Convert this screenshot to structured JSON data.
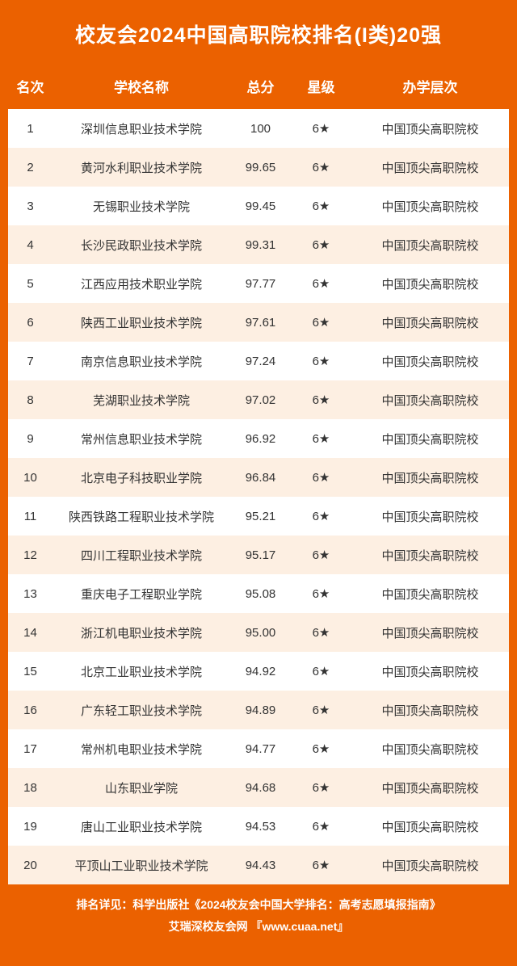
{
  "title": "校友会2024中国高职院校排名(I类)20强",
  "columns": {
    "rank": "名次",
    "name": "学校名称",
    "score": "总分",
    "star": "星级",
    "level": "办学层次"
  },
  "rows": [
    {
      "rank": "1",
      "name": "深圳信息职业技术学院",
      "score": "100",
      "star": "6★",
      "level": "中国顶尖高职院校"
    },
    {
      "rank": "2",
      "name": "黄河水利职业技术学院",
      "score": "99.65",
      "star": "6★",
      "level": "中国顶尖高职院校"
    },
    {
      "rank": "3",
      "name": "无锡职业技术学院",
      "score": "99.45",
      "star": "6★",
      "level": "中国顶尖高职院校"
    },
    {
      "rank": "4",
      "name": "长沙民政职业技术学院",
      "score": "99.31",
      "star": "6★",
      "level": "中国顶尖高职院校"
    },
    {
      "rank": "5",
      "name": "江西应用技术职业学院",
      "score": "97.77",
      "star": "6★",
      "level": "中国顶尖高职院校"
    },
    {
      "rank": "6",
      "name": "陕西工业职业技术学院",
      "score": "97.61",
      "star": "6★",
      "level": "中国顶尖高职院校"
    },
    {
      "rank": "7",
      "name": "南京信息职业技术学院",
      "score": "97.24",
      "star": "6★",
      "level": "中国顶尖高职院校"
    },
    {
      "rank": "8",
      "name": "芜湖职业技术学院",
      "score": "97.02",
      "star": "6★",
      "level": "中国顶尖高职院校"
    },
    {
      "rank": "9",
      "name": "常州信息职业技术学院",
      "score": "96.92",
      "star": "6★",
      "level": "中国顶尖高职院校"
    },
    {
      "rank": "10",
      "name": "北京电子科技职业学院",
      "score": "96.84",
      "star": "6★",
      "level": "中国顶尖高职院校"
    },
    {
      "rank": "11",
      "name": "陕西铁路工程职业技术学院",
      "score": "95.21",
      "star": "6★",
      "level": "中国顶尖高职院校"
    },
    {
      "rank": "12",
      "name": "四川工程职业技术学院",
      "score": "95.17",
      "star": "6★",
      "level": "中国顶尖高职院校"
    },
    {
      "rank": "13",
      "name": "重庆电子工程职业学院",
      "score": "95.08",
      "star": "6★",
      "level": "中国顶尖高职院校"
    },
    {
      "rank": "14",
      "name": "浙江机电职业技术学院",
      "score": "95.00",
      "star": "6★",
      "level": "中国顶尖高职院校"
    },
    {
      "rank": "15",
      "name": "北京工业职业技术学院",
      "score": "94.92",
      "star": "6★",
      "level": "中国顶尖高职院校"
    },
    {
      "rank": "16",
      "name": "广东轻工职业技术学院",
      "score": "94.89",
      "star": "6★",
      "level": "中国顶尖高职院校"
    },
    {
      "rank": "17",
      "name": "常州机电职业技术学院",
      "score": "94.77",
      "star": "6★",
      "level": "中国顶尖高职院校"
    },
    {
      "rank": "18",
      "name": "山东职业学院",
      "score": "94.68",
      "star": "6★",
      "level": "中国顶尖高职院校"
    },
    {
      "rank": "19",
      "name": "唐山工业职业技术学院",
      "score": "94.53",
      "star": "6★",
      "level": "中国顶尖高职院校"
    },
    {
      "rank": "20",
      "name": "平顶山工业职业技术学院",
      "score": "94.43",
      "star": "6★",
      "level": "中国顶尖高职院校"
    }
  ],
  "footer": {
    "line1": "排名详见：科学出版社《2024校友会中国大学排名：高考志愿填报指南》",
    "line2": "艾瑞深校友会网 『www.cuaa.net』"
  },
  "colors": {
    "brand": "#eb6100",
    "row_alt": "#fdefe2",
    "row_bg": "#ffffff",
    "text": "#333333",
    "header_text": "#ffffff"
  }
}
